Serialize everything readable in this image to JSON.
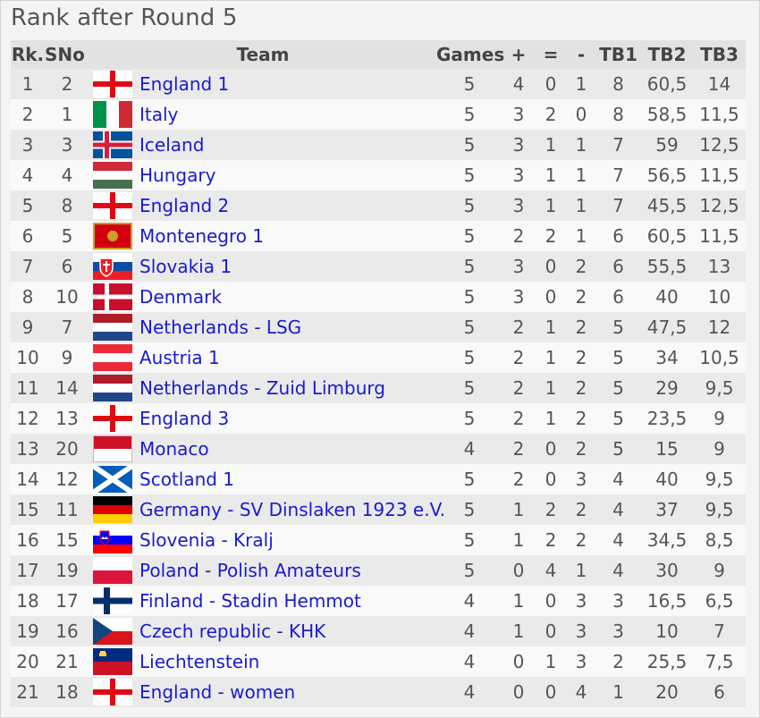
{
  "title": "Rank after Round 5",
  "headers": {
    "rk": "Rk.",
    "sno": "SNo",
    "team": "Team",
    "games": "Games",
    "plus": "+",
    "eq": "=",
    "minus": "-",
    "tb1": "TB1",
    "tb2": "TB2",
    "tb3": "TB3"
  },
  "rows": [
    {
      "rk": "1",
      "sno": "2",
      "flag": "england-flag-icon",
      "team": "England 1",
      "games": "5",
      "plus": "4",
      "eq": "0",
      "minus": "1",
      "tb1": "8",
      "tb2": "60,5",
      "tb3": "14"
    },
    {
      "rk": "2",
      "sno": "1",
      "flag": "italy-flag-icon",
      "team": "Italy",
      "games": "5",
      "plus": "3",
      "eq": "2",
      "minus": "0",
      "tb1": "8",
      "tb2": "58,5",
      "tb3": "11,5"
    },
    {
      "rk": "3",
      "sno": "3",
      "flag": "iceland-flag-icon",
      "team": "Iceland",
      "games": "5",
      "plus": "3",
      "eq": "1",
      "minus": "1",
      "tb1": "7",
      "tb2": "59",
      "tb3": "12,5"
    },
    {
      "rk": "4",
      "sno": "4",
      "flag": "hungary-flag-icon",
      "team": "Hungary",
      "games": "5",
      "plus": "3",
      "eq": "1",
      "minus": "1",
      "tb1": "7",
      "tb2": "56,5",
      "tb3": "11,5"
    },
    {
      "rk": "5",
      "sno": "8",
      "flag": "england-flag-icon",
      "team": "England 2",
      "games": "5",
      "plus": "3",
      "eq": "1",
      "minus": "1",
      "tb1": "7",
      "tb2": "45,5",
      "tb3": "12,5"
    },
    {
      "rk": "6",
      "sno": "5",
      "flag": "montenegro-flag-icon",
      "team": "Montenegro 1",
      "games": "5",
      "plus": "2",
      "eq": "2",
      "minus": "1",
      "tb1": "6",
      "tb2": "60,5",
      "tb3": "11,5"
    },
    {
      "rk": "7",
      "sno": "6",
      "flag": "slovakia-flag-icon",
      "team": "Slovakia 1",
      "games": "5",
      "plus": "3",
      "eq": "0",
      "minus": "2",
      "tb1": "6",
      "tb2": "55,5",
      "tb3": "13"
    },
    {
      "rk": "8",
      "sno": "10",
      "flag": "denmark-flag-icon",
      "team": "Denmark",
      "games": "5",
      "plus": "3",
      "eq": "0",
      "minus": "2",
      "tb1": "6",
      "tb2": "40",
      "tb3": "10"
    },
    {
      "rk": "9",
      "sno": "7",
      "flag": "netherlands-flag-icon",
      "team": "Netherlands - LSG",
      "games": "5",
      "plus": "2",
      "eq": "1",
      "minus": "2",
      "tb1": "5",
      "tb2": "47,5",
      "tb3": "12"
    },
    {
      "rk": "10",
      "sno": "9",
      "flag": "austria-flag-icon",
      "team": "Austria 1",
      "games": "5",
      "plus": "2",
      "eq": "1",
      "minus": "2",
      "tb1": "5",
      "tb2": "34",
      "tb3": "10,5"
    },
    {
      "rk": "11",
      "sno": "14",
      "flag": "netherlands-flag-icon",
      "team": "Netherlands - Zuid Limburg",
      "games": "5",
      "plus": "2",
      "eq": "1",
      "minus": "2",
      "tb1": "5",
      "tb2": "29",
      "tb3": "9,5"
    },
    {
      "rk": "12",
      "sno": "13",
      "flag": "england-flag-icon",
      "team": "England 3",
      "games": "5",
      "plus": "2",
      "eq": "1",
      "minus": "2",
      "tb1": "5",
      "tb2": "23,5",
      "tb3": "9"
    },
    {
      "rk": "13",
      "sno": "20",
      "flag": "monaco-flag-icon",
      "team": "Monaco",
      "games": "4",
      "plus": "2",
      "eq": "0",
      "minus": "2",
      "tb1": "5",
      "tb2": "15",
      "tb3": "9"
    },
    {
      "rk": "14",
      "sno": "12",
      "flag": "scotland-flag-icon",
      "team": "Scotland 1",
      "games": "5",
      "plus": "2",
      "eq": "0",
      "minus": "3",
      "tb1": "4",
      "tb2": "40",
      "tb3": "9,5"
    },
    {
      "rk": "15",
      "sno": "11",
      "flag": "germany-flag-icon",
      "team": "Germany - SV Dinslaken 1923 e.V.",
      "games": "5",
      "plus": "1",
      "eq": "2",
      "minus": "2",
      "tb1": "4",
      "tb2": "37",
      "tb3": "9,5"
    },
    {
      "rk": "16",
      "sno": "15",
      "flag": "slovenia-flag-icon",
      "team": "Slovenia - Kralj",
      "games": "5",
      "plus": "1",
      "eq": "2",
      "minus": "2",
      "tb1": "4",
      "tb2": "34,5",
      "tb3": "8,5"
    },
    {
      "rk": "17",
      "sno": "19",
      "flag": "poland-flag-icon",
      "team": "Poland - Polish Amateurs",
      "games": "5",
      "plus": "0",
      "eq": "4",
      "minus": "1",
      "tb1": "4",
      "tb2": "30",
      "tb3": "9"
    },
    {
      "rk": "18",
      "sno": "17",
      "flag": "finland-flag-icon",
      "team": "Finland - Stadin Hemmot",
      "games": "4",
      "plus": "1",
      "eq": "0",
      "minus": "3",
      "tb1": "3",
      "tb2": "16,5",
      "tb3": "6,5"
    },
    {
      "rk": "19",
      "sno": "16",
      "flag": "czech-flag-icon",
      "team": "Czech republic - KHK",
      "games": "4",
      "plus": "1",
      "eq": "0",
      "minus": "3",
      "tb1": "3",
      "tb2": "10",
      "tb3": "7"
    },
    {
      "rk": "20",
      "sno": "21",
      "flag": "liechtenstein-flag-icon",
      "team": "Liechtenstein",
      "games": "4",
      "plus": "0",
      "eq": "1",
      "minus": "3",
      "tb1": "2",
      "tb2": "25,5",
      "tb3": "7,5"
    },
    {
      "rk": "21",
      "sno": "18",
      "flag": "england-flag-icon",
      "team": "England - women",
      "games": "4",
      "plus": "0",
      "eq": "0",
      "minus": "4",
      "tb1": "1",
      "tb2": "20",
      "tb3": "6"
    }
  ],
  "colors": {
    "link": "#1a1ad0",
    "header_bg": "#e2e2e2",
    "row_odd": "#eaeaea",
    "row_even": "#f9f9f9"
  }
}
